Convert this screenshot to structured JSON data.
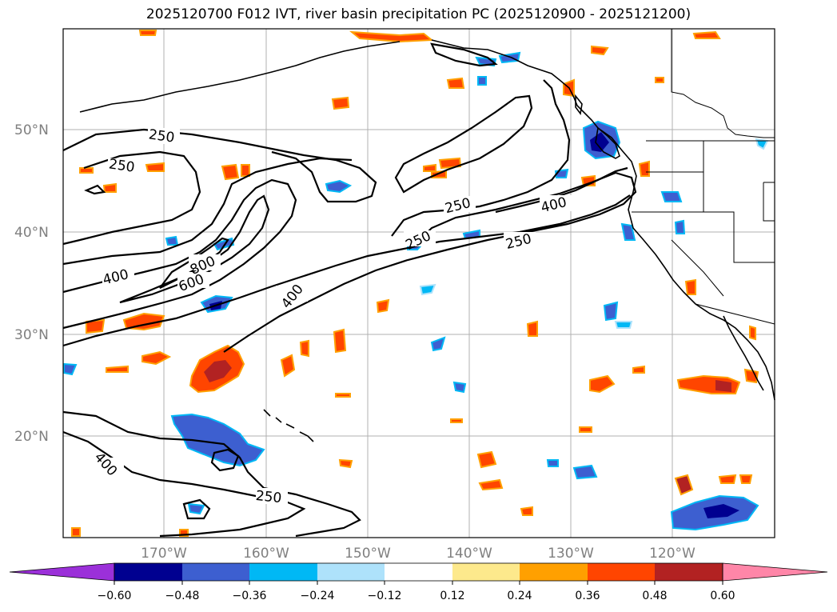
{
  "title": "2025120700 F012 IVT, river basin precipitation PC (2025120900 - 2025121200)",
  "map": {
    "lat_labels": [
      "50°N",
      "40°N",
      "30°N",
      "20°N"
    ],
    "lon_labels": [
      "170°W",
      "160°W",
      "150°W",
      "140°W",
      "130°W",
      "120°W"
    ],
    "ivt_contour_levels": [
      250,
      400,
      600,
      800
    ],
    "contour_labels": [
      "250",
      "250",
      "250",
      "250",
      "250",
      "250",
      "400",
      "400",
      "400",
      "400",
      "600",
      "800"
    ]
  },
  "colorbar": {
    "tick_labels": [
      "−0.60",
      "−0.48",
      "−0.36",
      "−0.24",
      "−0.12",
      "0.12",
      "0.24",
      "0.36",
      "0.48",
      "0.60"
    ],
    "colors": {
      "under": "#9b30d9",
      "neg_060": "#000090",
      "neg_048": "#3d5fd0",
      "neg_036": "#00b8f5",
      "neg_024": "#aee2fb",
      "neutral": "#ffffff",
      "pos_012": "#fde98c",
      "pos_024": "#ffa000",
      "pos_036": "#ff4500",
      "pos_048": "#b22222",
      "over": "#ff86a8"
    }
  }
}
